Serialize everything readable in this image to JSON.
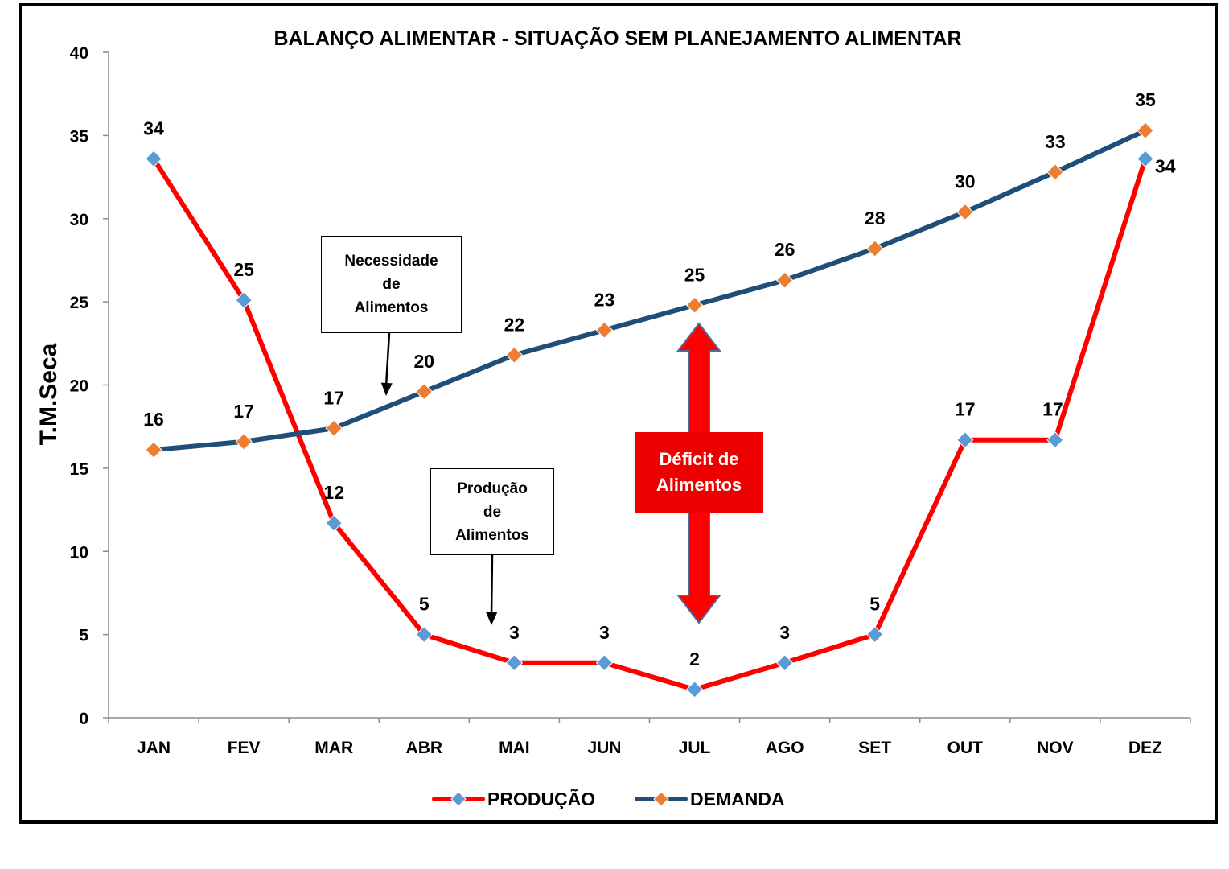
{
  "chart_data": {
    "type": "line",
    "title": "BALANÇO ALIMENTAR - SITUAÇÃO SEM PLANEJAMENTO ALIMENTAR",
    "xlabel": "",
    "ylabel": "T.M.Seca",
    "ylim": [
      0,
      40
    ],
    "yticks": [
      0,
      5,
      10,
      15,
      20,
      25,
      30,
      35,
      40
    ],
    "grid": false,
    "legend_position": "bottom",
    "categories": [
      "JAN",
      "FEV",
      "MAR",
      "ABR",
      "MAI",
      "JUN",
      "JUL",
      "AGO",
      "SET",
      "OUT",
      "NOV",
      "DEZ"
    ],
    "series": [
      {
        "name": "PRODUÇÃO",
        "line_color": "#ff0000",
        "marker_color": "#5b9bd5",
        "values": [
          33.6,
          25.1,
          11.7,
          5.0,
          3.3,
          3.3,
          1.7,
          3.3,
          5.0,
          16.7,
          16.7,
          33.6
        ],
        "labels": [
          "34",
          "25",
          "12",
          "5",
          "3",
          "3",
          "2",
          "3",
          "5",
          "17",
          "17",
          "34"
        ]
      },
      {
        "name": "DEMANDA",
        "line_color": "#1f4e79",
        "marker_color": "#ed7d31",
        "values": [
          16.1,
          16.6,
          17.4,
          19.6,
          21.8,
          23.3,
          24.8,
          26.3,
          28.2,
          30.4,
          32.8,
          35.3
        ],
        "labels": [
          "16",
          "17",
          "17",
          "20",
          "22",
          "23",
          "25",
          "26",
          "28",
          "30",
          "33",
          "35"
        ]
      }
    ],
    "annotations": {
      "demand_note": [
        "Necessidade",
        "de",
        "Alimentos"
      ],
      "production_note": [
        "Produção",
        "de",
        "Alimentos"
      ],
      "deficit_note": [
        "Déficit de",
        "Alimentos"
      ],
      "deficit_arrow_color": "#ff0000"
    }
  }
}
